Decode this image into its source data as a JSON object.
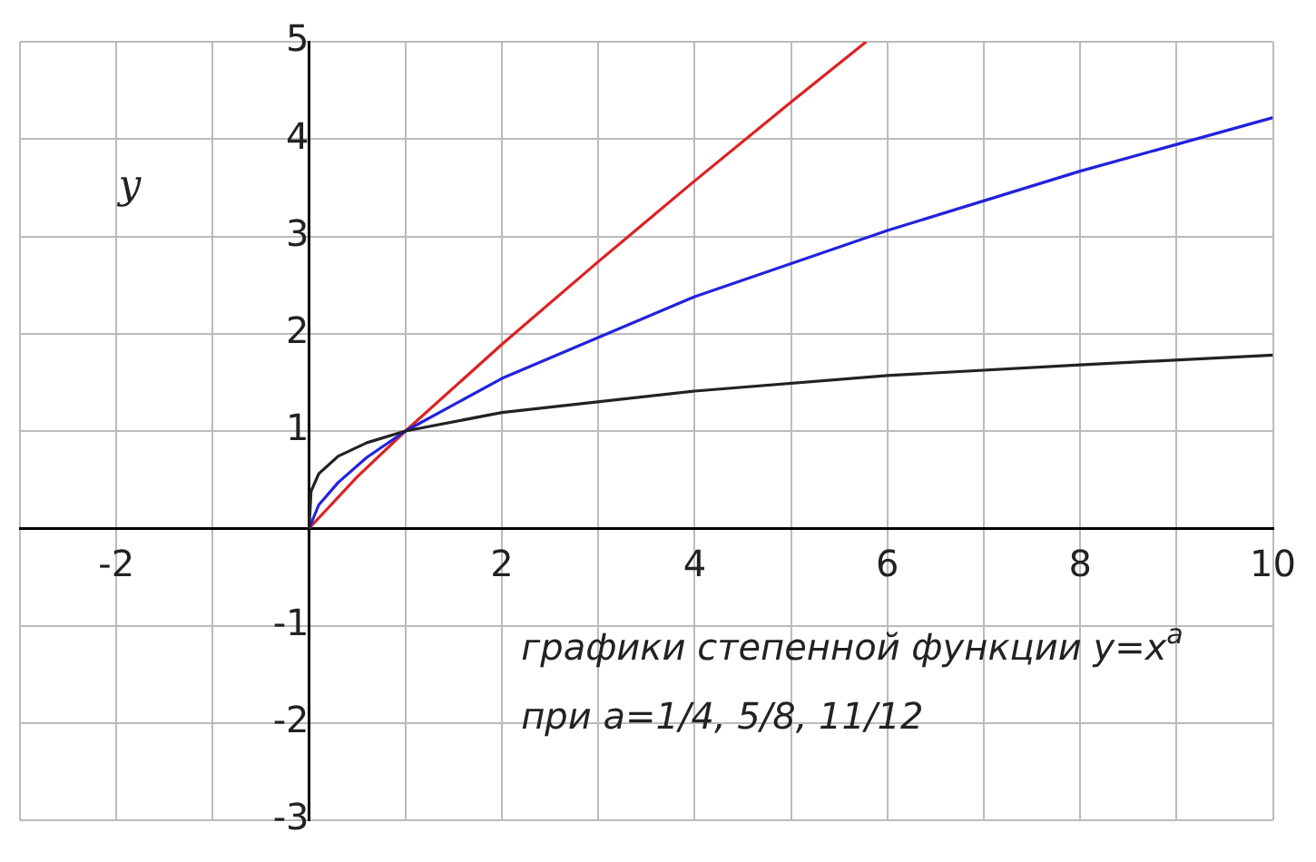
{
  "chart_data": {
    "type": "line",
    "ylabel": "y",
    "annotations": [
      "графики степенной функции y=x$^{a}$",
      "при a=1/4, 5/8, 11/12"
    ],
    "xlim": [
      -3,
      10
    ],
    "ylim": [
      -3,
      5
    ],
    "xticks": [
      {
        "value": -3,
        "label": null
      },
      -2,
      {
        "value": -1,
        "label": null
      },
      {
        "value": 0,
        "label": null
      },
      {
        "value": 1,
        "label": null
      },
      2,
      {
        "value": 3,
        "label": null
      },
      4,
      {
        "value": 5,
        "label": null
      },
      6,
      {
        "value": 7,
        "label": null
      },
      8,
      {
        "value": 9,
        "label": null
      },
      10
    ],
    "yticks": [
      -3,
      -2,
      -1,
      {
        "value": 0,
        "label": null
      },
      1,
      2,
      3,
      4,
      5
    ],
    "grid": true,
    "legend": false,
    "marker": "none",
    "line_style": "solid",
    "series": [
      {
        "color": "#222222",
        "x": [
          0,
          0.02,
          0.1,
          0.3,
          0.6,
          1,
          2,
          4,
          6,
          8,
          10
        ],
        "values": [
          0,
          0.38,
          0.56,
          0.74,
          0.88,
          1,
          1.19,
          1.41,
          1.57,
          1.68,
          1.78
        ]
      },
      {
        "color": "#2222dd",
        "x": [
          0,
          0.1,
          0.3,
          0.6,
          1,
          2,
          4,
          6,
          8,
          10
        ],
        "values": [
          0,
          0.24,
          0.47,
          0.73,
          1,
          1.54,
          2.38,
          3.06,
          3.67,
          4.22
        ]
      },
      {
        "color": "#dd2222",
        "x": [
          0,
          0.5,
          1,
          2,
          3,
          4,
          5,
          5.78
        ],
        "values": [
          0,
          0.53,
          1,
          1.89,
          2.74,
          3.57,
          4.38,
          5
        ]
      }
    ]
  }
}
